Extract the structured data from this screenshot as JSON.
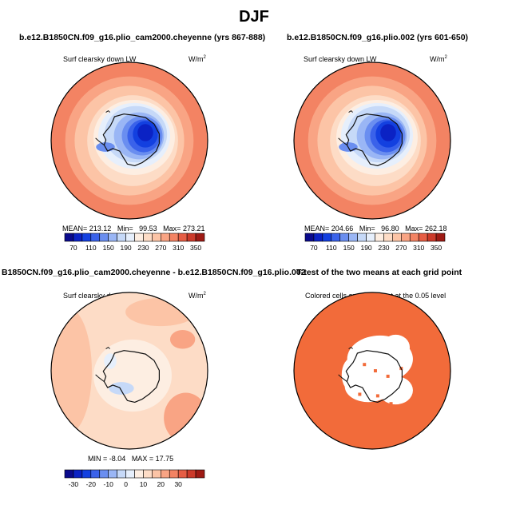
{
  "page": {
    "title": "DJF"
  },
  "panels": [
    {
      "id": "p1",
      "title": "b.e12.B1850CN.f09_g16.plio_cam2000.cheyenne (yrs 867-888)",
      "var": "Surf clearsky down LW",
      "units": "W/m",
      "units_sup": "2",
      "stats": {
        "mean_label": "MEAN=",
        "mean": "213.12",
        "min_label": "Min=",
        "min": "99.53",
        "max_label": "Max=",
        "max": "273.21"
      }
    },
    {
      "id": "p2",
      "title": "b.e12.B1850CN.f09_g16.plio.002 (yrs 601-650)",
      "var": "Surf clearsky down LW",
      "units": "W/m",
      "units_sup": "2",
      "stats": {
        "mean_label": "MEAN=",
        "mean": "204.66",
        "min_label": "Min=",
        "min": "96.80",
        "max_label": "Max=",
        "max": "262.18"
      }
    },
    {
      "id": "p3",
      "title": "B1850CN.f09_g16.plio_cam2000.cheyenne - b.e12.B1850CN.f09_g16.plio.002",
      "var": "Surf clearsky down LW",
      "units": "W/m",
      "units_sup": "2",
      "stats": {
        "min_label": "MIN =",
        "min": "-8.04",
        "max_label": "MAX =",
        "max": "17.75"
      }
    },
    {
      "id": "p4",
      "title": "T-test of the two means at each grid point",
      "note": "Colored cells are significant at the 0.05 level"
    }
  ],
  "chart_data": [
    {
      "type": "heatmap",
      "title": "b.e12.B1850CN.f09_g16.plio_cam2000.cheyenne (yrs 867-888)",
      "variable": "Surf clearsky down LW",
      "units": "W/m^2",
      "season": "DJF",
      "mean": 213.12,
      "min": 99.53,
      "max": 273.21,
      "levels": [
        70,
        90,
        110,
        130,
        150,
        170,
        190,
        210,
        230,
        250,
        270,
        290,
        310,
        330,
        350
      ],
      "colorbar_tick_labels": [
        "70",
        "110",
        "150",
        "190",
        "230",
        "270",
        "310",
        "350"
      ],
      "colors": [
        "#0a0a8c",
        "#0b22c4",
        "#1340e0",
        "#3a62ea",
        "#6a8ef0",
        "#9ab6f5",
        "#c6d9f8",
        "#e6effc",
        "#fdeee2",
        "#fddcc6",
        "#fcc4a6",
        "#f9a484",
        "#f38363",
        "#e65d44",
        "#cc3a2a",
        "#9e1a14"
      ]
    },
    {
      "type": "heatmap",
      "title": "b.e12.B1850CN.f09_g16.plio.002 (yrs 601-650)",
      "variable": "Surf clearsky down LW",
      "units": "W/m^2",
      "season": "DJF",
      "mean": 204.66,
      "min": 96.8,
      "max": 262.18,
      "levels": [
        70,
        90,
        110,
        130,
        150,
        170,
        190,
        210,
        230,
        250,
        270,
        290,
        310,
        330,
        350
      ],
      "colorbar_tick_labels": [
        "70",
        "110",
        "150",
        "190",
        "230",
        "270",
        "310",
        "350"
      ],
      "colors": [
        "#0a0a8c",
        "#0b22c4",
        "#1340e0",
        "#3a62ea",
        "#6a8ef0",
        "#9ab6f5",
        "#c6d9f8",
        "#e6effc",
        "#fdeee2",
        "#fddcc6",
        "#fcc4a6",
        "#f9a484",
        "#f38363",
        "#e65d44",
        "#cc3a2a",
        "#9e1a14"
      ]
    },
    {
      "type": "heatmap",
      "title": "B1850CN.f09_g16.plio_cam2000.cheyenne - b.e12.B1850CN.f09_g16.plio.002",
      "variable": "Surf clearsky down LW",
      "units": "W/m^2",
      "season": "DJF",
      "min": -8.04,
      "max": 17.75,
      "levels": [
        -35,
        -30,
        -25,
        -20,
        -15,
        -10,
        -5,
        0,
        5,
        10,
        15,
        20,
        25,
        30,
        35
      ],
      "colorbar_tick_labels": [
        "-30",
        "-20",
        "-10",
        "0",
        "10",
        "20",
        "30"
      ],
      "colors": [
        "#0a0a8c",
        "#0b22c4",
        "#1340e0",
        "#3a62ea",
        "#6a8ef0",
        "#9ab6f5",
        "#c6d9f8",
        "#e6effc",
        "#fdeee2",
        "#fddcc6",
        "#fcc4a6",
        "#f9a484",
        "#f38363",
        "#e65d44",
        "#cc3a2a",
        "#9e1a14"
      ]
    },
    {
      "type": "heatmap",
      "title": "T-test of the two means at each grid point",
      "description_text": "Colored cells are significant at the 0.05 level",
      "significance_level": 0.05,
      "significant_color": "#f26b3a"
    }
  ]
}
